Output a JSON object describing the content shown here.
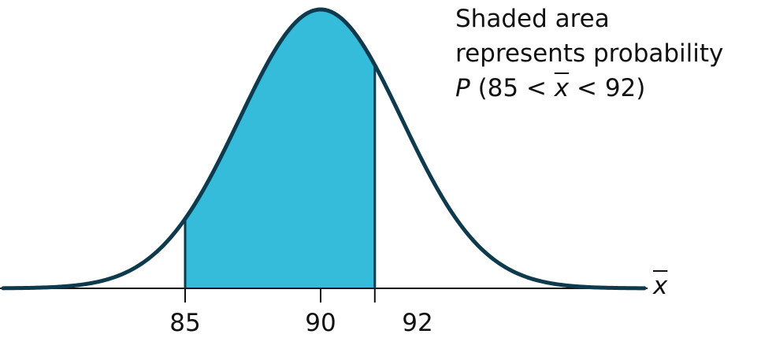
{
  "annotation": {
    "line1": "Shaded area",
    "line2": "represents probability",
    "p_symbol": "P",
    "p_open": "(85 < ",
    "p_var": "x",
    "p_close": " < 92)"
  },
  "axis": {
    "variable": "x",
    "ticks": [
      {
        "value": 85,
        "label": "85"
      },
      {
        "value": 90,
        "label": "90"
      },
      {
        "value": 92,
        "label": "92"
      }
    ]
  },
  "distribution": {
    "type": "normal",
    "mean": 90,
    "shaded_from": 85,
    "shaded_to": 92
  },
  "colors": {
    "curve": "#0d3a4d",
    "fill": "#35bcdb",
    "axis": "#111111",
    "text": "#111111"
  }
}
